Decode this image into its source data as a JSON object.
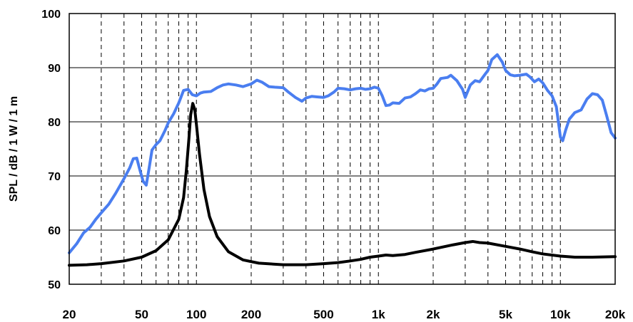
{
  "chart_data": {
    "type": "line",
    "title": "",
    "xlabel": "",
    "ylabel": "SPL / dB / 1 W / 1 m",
    "x_scale": "log",
    "xlim": [
      20,
      20000
    ],
    "ylim": [
      50,
      100
    ],
    "grid": {
      "x_major": "dashed",
      "y_major": "solid"
    },
    "x_ticks": [
      {
        "value": 20,
        "label": "20"
      },
      {
        "value": 50,
        "label": "50"
      },
      {
        "value": 100,
        "label": "100"
      },
      {
        "value": 200,
        "label": "200"
      },
      {
        "value": 500,
        "label": "500"
      },
      {
        "value": 1000,
        "label": "1k"
      },
      {
        "value": 2000,
        "label": "2k"
      },
      {
        "value": 5000,
        "label": "5k"
      },
      {
        "value": 10000,
        "label": "10k"
      },
      {
        "value": 20000,
        "label": "20k"
      }
    ],
    "y_ticks": [
      {
        "value": 50,
        "label": "50"
      },
      {
        "value": 60,
        "label": "60"
      },
      {
        "value": 70,
        "label": "70"
      },
      {
        "value": 80,
        "label": "80"
      },
      {
        "value": 90,
        "label": "90"
      },
      {
        "value": 100,
        "label": "100"
      }
    ],
    "series": [
      {
        "color": "#4a7ef0",
        "points": [
          [
            20,
            55.8
          ],
          [
            22,
            57.5
          ],
          [
            24,
            59.5
          ],
          [
            26,
            60.5
          ],
          [
            28,
            62
          ],
          [
            30,
            63.2
          ],
          [
            33,
            64.8
          ],
          [
            36,
            66.8
          ],
          [
            40,
            69.5
          ],
          [
            43,
            71.5
          ],
          [
            45,
            73.2
          ],
          [
            47,
            73.3
          ],
          [
            49,
            71
          ],
          [
            51,
            69
          ],
          [
            53,
            68.3
          ],
          [
            55,
            71.5
          ],
          [
            57,
            74.8
          ],
          [
            60,
            75.8
          ],
          [
            63,
            76.5
          ],
          [
            67,
            78.3
          ],
          [
            70,
            79.8
          ],
          [
            75,
            81.5
          ],
          [
            80,
            83.5
          ],
          [
            85,
            85.8
          ],
          [
            90,
            86
          ],
          [
            95,
            85
          ],
          [
            100,
            84.8
          ],
          [
            105,
            85.3
          ],
          [
            110,
            85.5
          ],
          [
            120,
            85.6
          ],
          [
            130,
            86.3
          ],
          [
            140,
            86.8
          ],
          [
            150,
            87
          ],
          [
            165,
            86.8
          ],
          [
            180,
            86.5
          ],
          [
            200,
            87
          ],
          [
            215,
            87.7
          ],
          [
            230,
            87.3
          ],
          [
            250,
            86.5
          ],
          [
            270,
            86.4
          ],
          [
            300,
            86.3
          ],
          [
            320,
            85.5
          ],
          [
            350,
            84.5
          ],
          [
            380,
            83.8
          ],
          [
            400,
            84.4
          ],
          [
            430,
            84.7
          ],
          [
            460,
            84.6
          ],
          [
            500,
            84.5
          ],
          [
            530,
            84.8
          ],
          [
            570,
            85.5
          ],
          [
            600,
            86.2
          ],
          [
            650,
            86.1
          ],
          [
            700,
            85.9
          ],
          [
            750,
            86.1
          ],
          [
            800,
            86.2
          ],
          [
            850,
            86
          ],
          [
            900,
            86.1
          ],
          [
            950,
            86.4
          ],
          [
            1000,
            86.2
          ],
          [
            1050,
            84.8
          ],
          [
            1100,
            83
          ],
          [
            1150,
            83.1
          ],
          [
            1200,
            83.5
          ],
          [
            1300,
            83.4
          ],
          [
            1400,
            84.4
          ],
          [
            1500,
            84.6
          ],
          [
            1600,
            85.2
          ],
          [
            1700,
            85.9
          ],
          [
            1800,
            85.7
          ],
          [
            1900,
            86.1
          ],
          [
            2000,
            86.2
          ],
          [
            2100,
            87
          ],
          [
            2200,
            88
          ],
          [
            2400,
            88.2
          ],
          [
            2500,
            88.6
          ],
          [
            2700,
            87.6
          ],
          [
            2900,
            86
          ],
          [
            3000,
            84.5
          ],
          [
            3200,
            86.8
          ],
          [
            3400,
            87.6
          ],
          [
            3600,
            87.4
          ],
          [
            3800,
            88.5
          ],
          [
            4000,
            89.5
          ],
          [
            4200,
            91.5
          ],
          [
            4500,
            92.4
          ],
          [
            4800,
            91
          ],
          [
            5000,
            89.5
          ],
          [
            5300,
            88.7
          ],
          [
            5600,
            88.5
          ],
          [
            6000,
            88.6
          ],
          [
            6500,
            88.8
          ],
          [
            6800,
            88.3
          ],
          [
            7200,
            87.4
          ],
          [
            7600,
            87.9
          ],
          [
            8000,
            87.2
          ],
          [
            8500,
            85.8
          ],
          [
            9000,
            84.8
          ],
          [
            9500,
            82.8
          ],
          [
            10000,
            77.2
          ],
          [
            10300,
            76.5
          ],
          [
            10700,
            78.5
          ],
          [
            11200,
            80.5
          ],
          [
            12000,
            81.7
          ],
          [
            13000,
            82.2
          ],
          [
            14000,
            84.2
          ],
          [
            15000,
            85.2
          ],
          [
            16000,
            85
          ],
          [
            17000,
            84
          ],
          [
            18000,
            81
          ],
          [
            19000,
            78
          ],
          [
            20000,
            77
          ]
        ]
      },
      {
        "color": "#000000",
        "points": [
          [
            20,
            53.5
          ],
          [
            25,
            53.6
          ],
          [
            30,
            53.8
          ],
          [
            40,
            54.3
          ],
          [
            50,
            55
          ],
          [
            60,
            56.2
          ],
          [
            70,
            58.2
          ],
          [
            80,
            62
          ],
          [
            85,
            66
          ],
          [
            88,
            71
          ],
          [
            91,
            77
          ],
          [
            93,
            81.3
          ],
          [
            95.5,
            83.4
          ],
          [
            98,
            82.2
          ],
          [
            100,
            79.5
          ],
          [
            104,
            74
          ],
          [
            110,
            67.5
          ],
          [
            118,
            62.5
          ],
          [
            130,
            58.8
          ],
          [
            150,
            56
          ],
          [
            180,
            54.5
          ],
          [
            220,
            53.9
          ],
          [
            300,
            53.6
          ],
          [
            400,
            53.6
          ],
          [
            500,
            53.8
          ],
          [
            600,
            54
          ],
          [
            700,
            54.3
          ],
          [
            800,
            54.6
          ],
          [
            900,
            55
          ],
          [
            1000,
            55.2
          ],
          [
            1100,
            55.4
          ],
          [
            1200,
            55.3
          ],
          [
            1400,
            55.5
          ],
          [
            1600,
            55.9
          ],
          [
            2000,
            56.5
          ],
          [
            2500,
            57.2
          ],
          [
            3000,
            57.7
          ],
          [
            3300,
            57.9
          ],
          [
            3600,
            57.7
          ],
          [
            4000,
            57.6
          ],
          [
            5000,
            57
          ],
          [
            6000,
            56.5
          ],
          [
            7000,
            56
          ],
          [
            8000,
            55.6
          ],
          [
            10000,
            55.2
          ],
          [
            12000,
            55
          ],
          [
            15000,
            55
          ],
          [
            20000,
            55.1
          ]
        ]
      }
    ]
  }
}
